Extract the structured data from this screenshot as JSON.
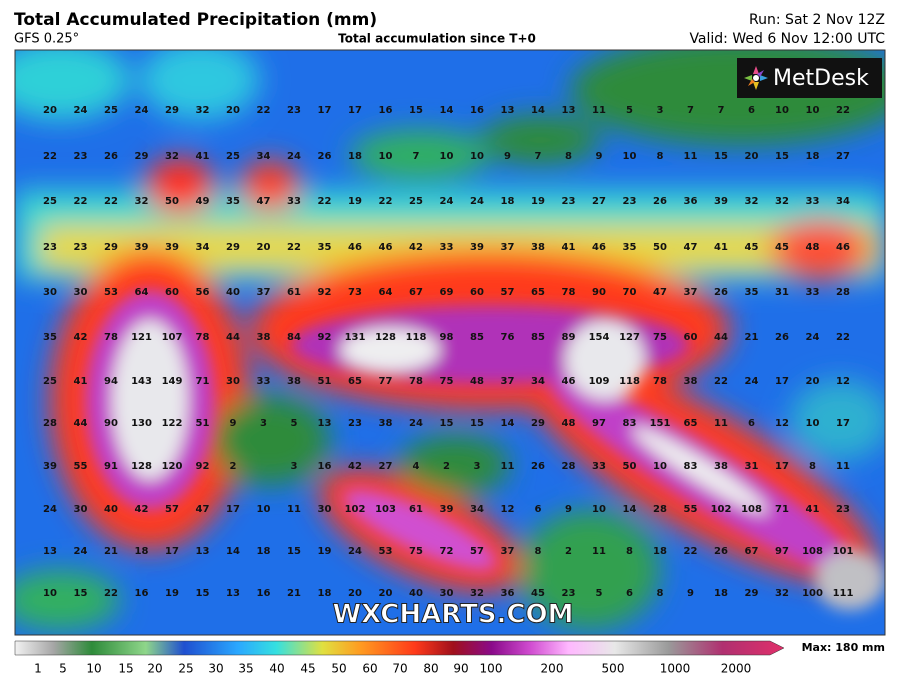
{
  "header": {
    "title": "Total Accumulated Precipitation (mm)",
    "model": "GFS 0.25°",
    "subtitle": "Total accumulation since T+0",
    "run": "Run: Sat 2 Nov 12Z",
    "valid": "Valid: Wed 6 Nov 12:00 UTC"
  },
  "logo": "MetDesk",
  "watermark": "WXCHARTS.COM",
  "grid_values": [
    [
      20,
      24,
      25,
      24,
      29,
      32,
      20,
      22,
      23,
      17,
      17,
      16,
      15,
      14,
      16,
      13,
      14,
      13,
      11,
      5,
      3,
      7,
      7,
      6,
      10,
      10,
      22
    ],
    [
      22,
      23,
      26,
      29,
      32,
      41,
      25,
      34,
      24,
      26,
      18,
      10,
      7,
      10,
      10,
      9,
      7,
      8,
      9,
      10,
      8,
      11,
      15,
      20,
      15,
      18,
      27
    ],
    [
      25,
      22,
      22,
      32,
      50,
      49,
      35,
      47,
      33,
      22,
      19,
      22,
      25,
      24,
      24,
      18,
      19,
      23,
      27,
      23,
      26,
      36,
      39,
      32,
      32,
      33,
      34
    ],
    [
      23,
      23,
      29,
      39,
      39,
      34,
      29,
      20,
      22,
      35,
      46,
      46,
      42,
      33,
      39,
      37,
      38,
      41,
      46,
      35,
      50,
      47,
      41,
      45,
      45,
      48,
      46
    ],
    [
      30,
      30,
      53,
      64,
      60,
      56,
      40,
      37,
      61,
      92,
      73,
      64,
      67,
      69,
      60,
      57,
      65,
      78,
      90,
      70,
      47,
      37,
      26,
      35,
      31,
      33,
      28
    ],
    [
      35,
      42,
      78,
      121,
      107,
      78,
      44,
      38,
      84,
      92,
      131,
      128,
      118,
      98,
      85,
      76,
      85,
      89,
      154,
      127,
      75,
      60,
      44,
      21,
      26,
      24,
      22
    ],
    [
      25,
      41,
      94,
      143,
      149,
      71,
      30,
      33,
      38,
      51,
      65,
      77,
      78,
      75,
      48,
      37,
      34,
      46,
      109,
      118,
      78,
      38,
      22,
      24,
      17,
      20,
      12
    ],
    [
      28,
      44,
      90,
      130,
      122,
      51,
      9,
      3,
      5,
      13,
      23,
      38,
      24,
      15,
      15,
      14,
      29,
      48,
      97,
      83,
      151,
      65,
      11,
      6,
      12,
      10,
      17
    ],
    [
      39,
      55,
      91,
      128,
      120,
      92,
      2,
      null,
      3,
      16,
      42,
      27,
      4,
      2,
      3,
      11,
      26,
      28,
      33,
      50,
      10,
      83,
      38,
      31,
      17,
      8,
      11
    ],
    [
      24,
      30,
      40,
      42,
      57,
      47,
      17,
      10,
      11,
      30,
      102,
      103,
      61,
      39,
      34,
      12,
      6,
      9,
      10,
      14,
      28,
      55,
      102,
      108,
      71,
      41,
      23
    ],
    [
      13,
      24,
      21,
      18,
      17,
      13,
      14,
      18,
      15,
      19,
      24,
      53,
      75,
      72,
      57,
      37,
      8,
      2,
      11,
      8,
      18,
      22,
      26,
      67,
      97,
      108,
      101
    ],
    [
      10,
      15,
      22,
      16,
      19,
      15,
      13,
      16,
      21,
      18,
      20,
      20,
      40,
      30,
      32,
      36,
      45,
      23,
      5,
      6,
      8,
      9,
      18,
      29,
      32,
      100,
      111
    ]
  ],
  "colorbar": {
    "labels": [
      1,
      5,
      10,
      15,
      20,
      25,
      30,
      35,
      40,
      45,
      50,
      60,
      70,
      80,
      90,
      100,
      200,
      500,
      1000,
      2000
    ],
    "max_label": "Max: 180 mm"
  }
}
